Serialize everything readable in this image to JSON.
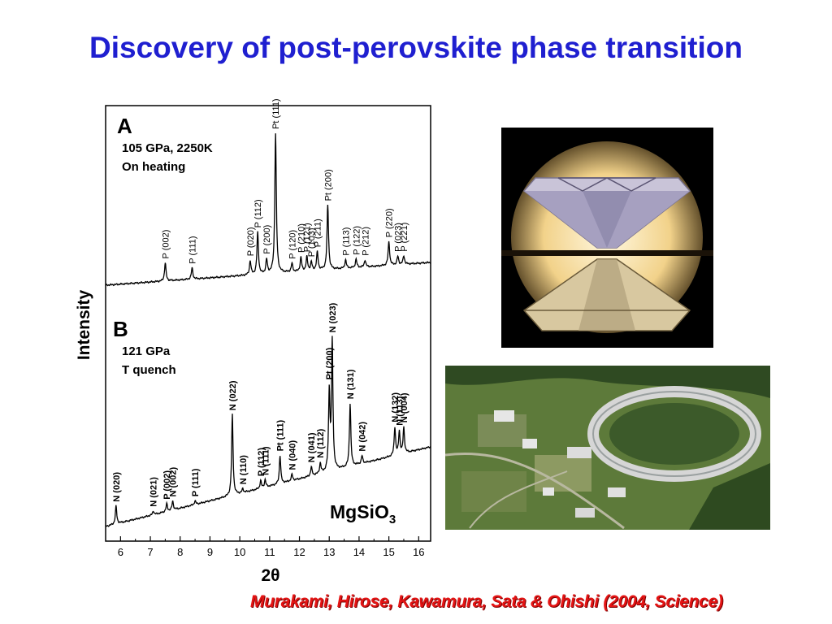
{
  "slide": {
    "title": "Discovery of post-perovskite phase transition",
    "citation": "Murakami, Hirose, Kawamura, Sata & Ohishi (2004, Science)"
  },
  "colors": {
    "title": "#1f1fd0",
    "citation": "#e41414"
  },
  "chart_data": {
    "type": "line",
    "ylabel": "Intensity",
    "xlabel": "2θ",
    "xlim": [
      5.5,
      16.4
    ],
    "xticks": [
      6,
      7,
      8,
      9,
      10,
      11,
      12,
      13,
      14,
      15,
      16
    ],
    "grid": false,
    "compound": {
      "base": "MgSiO",
      "sub": "3"
    },
    "panels": [
      {
        "letter": "A",
        "condition1": "105 GPa, 2250K",
        "condition2": "On heating",
        "peaks": [
          {
            "x": 7.5,
            "h": 0.13,
            "label": "P (002)"
          },
          {
            "x": 8.4,
            "h": 0.08,
            "label": "P (111)"
          },
          {
            "x": 10.35,
            "h": 0.1,
            "label": "P (020)"
          },
          {
            "x": 10.6,
            "h": 0.3,
            "label": "P (112)"
          },
          {
            "x": 10.9,
            "h": 0.1,
            "label": "P (200)"
          },
          {
            "x": 11.2,
            "h": 1.0,
            "label": "Pt (111)"
          },
          {
            "x": 11.75,
            "h": 0.06,
            "label": "P (120)"
          },
          {
            "x": 12.05,
            "h": 0.1,
            "label": "P (210)"
          },
          {
            "x": 12.25,
            "h": 0.1,
            "label": "P (121)"
          },
          {
            "x": 12.4,
            "h": 0.06,
            "label": "P (103)"
          },
          {
            "x": 12.6,
            "h": 0.13,
            "label": "P (211)"
          },
          {
            "x": 12.95,
            "h": 0.46,
            "label": "Pt (200)"
          },
          {
            "x": 13.55,
            "h": 0.06,
            "label": "P (113)"
          },
          {
            "x": 13.9,
            "h": 0.06,
            "label": "P (122)"
          },
          {
            "x": 14.2,
            "h": 0.05,
            "label": "P (212)"
          },
          {
            "x": 15.0,
            "h": 0.17,
            "label": "P (220)"
          },
          {
            "x": 15.3,
            "h": 0.06,
            "label": "P (023)"
          },
          {
            "x": 15.5,
            "h": 0.06,
            "label": "P (221)"
          }
        ]
      },
      {
        "letter": "B",
        "condition1": "121 GPa",
        "condition2": "T quench",
        "peaks": [
          {
            "x": 5.85,
            "h": 0.14,
            "label": "N (020)"
          },
          {
            "x": 7.1,
            "h": 0.03,
            "label": "N (021)"
          },
          {
            "x": 7.55,
            "h": 0.06,
            "label": "P (002)"
          },
          {
            "x": 7.75,
            "h": 0.07,
            "label": "N (002)"
          },
          {
            "x": 8.5,
            "h": 0.03,
            "label": "P (111)"
          },
          {
            "x": 9.75,
            "h": 0.63,
            "label": "N (022)"
          },
          {
            "x": 10.1,
            "h": 0.03,
            "label": "N (110)"
          },
          {
            "x": 10.7,
            "h": 0.06,
            "label": "P (112)"
          },
          {
            "x": 10.85,
            "h": 0.06,
            "label": "N (111)"
          },
          {
            "x": 11.35,
            "h": 0.22,
            "label": "Pt (111)"
          },
          {
            "x": 11.75,
            "h": 0.05,
            "label": "N (040)"
          },
          {
            "x": 12.4,
            "h": 0.07,
            "label": "N (041)"
          },
          {
            "x": 12.7,
            "h": 0.08,
            "label": "N (112)"
          },
          {
            "x": 13.0,
            "h": 0.61,
            "label": "Pt (200)"
          },
          {
            "x": 13.1,
            "h": 1.0,
            "label": "N (023)"
          },
          {
            "x": 13.7,
            "h": 0.49,
            "label": "N (131)"
          },
          {
            "x": 14.1,
            "h": 0.06,
            "label": "N (042)"
          },
          {
            "x": 15.2,
            "h": 0.22,
            "label": "N (132)"
          },
          {
            "x": 15.35,
            "h": 0.18,
            "label": "N (113)"
          },
          {
            "x": 15.5,
            "h": 0.2,
            "label": "N (004)"
          }
        ]
      }
    ]
  }
}
